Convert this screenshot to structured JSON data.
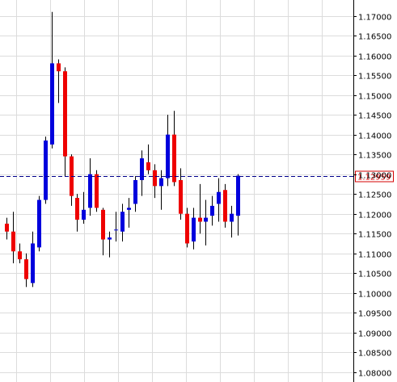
{
  "chart_data": {
    "type": "candlestick",
    "title": "",
    "xlabel": "",
    "ylabel": "",
    "ylim": [
      1.0775,
      1.174
    ],
    "y_ticks": [
      "1.17000",
      "1.16500",
      "1.16000",
      "1.15500",
      "1.15000",
      "1.14500",
      "1.14000",
      "1.13500",
      "1.13000",
      "1.12500",
      "1.12000",
      "1.11500",
      "1.11000",
      "1.10500",
      "1.10000",
      "1.09500",
      "1.09000",
      "1.08500",
      "1.08000"
    ],
    "current_price": "1.12959",
    "grid": true,
    "axis_side": "right",
    "colors": {
      "up": "#0000dd",
      "down": "#ee0000",
      "wick": "#000000",
      "grid": "#dcdcdc",
      "current_line": "#00008b",
      "current_label": "#d40000"
    },
    "candles": [
      {
        "o": 1.1175,
        "h": 1.119,
        "l": 1.1135,
        "c": 1.1155
      },
      {
        "o": 1.1155,
        "h": 1.1205,
        "l": 1.1075,
        "c": 1.1105
      },
      {
        "o": 1.1105,
        "h": 1.1125,
        "l": 1.1075,
        "c": 1.1085
      },
      {
        "o": 1.1085,
        "h": 1.11,
        "l": 1.1015,
        "c": 1.1035
      },
      {
        "o": 1.1025,
        "h": 1.1155,
        "l": 1.1015,
        "c": 1.1125
      },
      {
        "o": 1.1115,
        "h": 1.1245,
        "l": 1.1105,
        "c": 1.1235
      },
      {
        "o": 1.1235,
        "h": 1.1395,
        "l": 1.1225,
        "c": 1.1385
      },
      {
        "o": 1.1375,
        "h": 1.171,
        "l": 1.1365,
        "c": 1.158
      },
      {
        "o": 1.158,
        "h": 1.159,
        "l": 1.148,
        "c": 1.156
      },
      {
        "o": 1.156,
        "h": 1.157,
        "l": 1.1295,
        "c": 1.1345
      },
      {
        "o": 1.1345,
        "h": 1.135,
        "l": 1.122,
        "c": 1.1245
      },
      {
        "o": 1.124,
        "h": 1.125,
        "l": 1.1155,
        "c": 1.1185
      },
      {
        "o": 1.1185,
        "h": 1.1255,
        "l": 1.1175,
        "c": 1.121
      },
      {
        "o": 1.1215,
        "h": 1.134,
        "l": 1.1195,
        "c": 1.13
      },
      {
        "o": 1.13,
        "h": 1.131,
        "l": 1.1205,
        "c": 1.1215
      },
      {
        "o": 1.121,
        "h": 1.1215,
        "l": 1.1095,
        "c": 1.1135
      },
      {
        "o": 1.1135,
        "h": 1.1155,
        "l": 1.109,
        "c": 1.114
      },
      {
        "o": 1.116,
        "h": 1.1205,
        "l": 1.113,
        "c": 1.116
      },
      {
        "o": 1.1155,
        "h": 1.1225,
        "l": 1.113,
        "c": 1.1205
      },
      {
        "o": 1.121,
        "h": 1.124,
        "l": 1.1165,
        "c": 1.1215
      },
      {
        "o": 1.1225,
        "h": 1.1295,
        "l": 1.1205,
        "c": 1.1285
      },
      {
        "o": 1.1285,
        "h": 1.136,
        "l": 1.1245,
        "c": 1.134
      },
      {
        "o": 1.133,
        "h": 1.1375,
        "l": 1.13,
        "c": 1.131
      },
      {
        "o": 1.131,
        "h": 1.1325,
        "l": 1.124,
        "c": 1.127
      },
      {
        "o": 1.127,
        "h": 1.131,
        "l": 1.121,
        "c": 1.129
      },
      {
        "o": 1.129,
        "h": 1.145,
        "l": 1.127,
        "c": 1.14
      },
      {
        "o": 1.14,
        "h": 1.146,
        "l": 1.127,
        "c": 1.128
      },
      {
        "o": 1.1285,
        "h": 1.1315,
        "l": 1.1185,
        "c": 1.12
      },
      {
        "o": 1.12,
        "h": 1.1215,
        "l": 1.1115,
        "c": 1.1125
      },
      {
        "o": 1.113,
        "h": 1.1215,
        "l": 1.111,
        "c": 1.119
      },
      {
        "o": 1.119,
        "h": 1.1275,
        "l": 1.115,
        "c": 1.118
      },
      {
        "o": 1.118,
        "h": 1.1235,
        "l": 1.112,
        "c": 1.119
      },
      {
        "o": 1.1195,
        "h": 1.1245,
        "l": 1.117,
        "c": 1.122
      },
      {
        "o": 1.1225,
        "h": 1.129,
        "l": 1.118,
        "c": 1.1255
      },
      {
        "o": 1.126,
        "h": 1.1275,
        "l": 1.1165,
        "c": 1.118
      },
      {
        "o": 1.118,
        "h": 1.122,
        "l": 1.114,
        "c": 1.12
      },
      {
        "o": 1.1195,
        "h": 1.13,
        "l": 1.1145,
        "c": 1.1296
      }
    ]
  }
}
